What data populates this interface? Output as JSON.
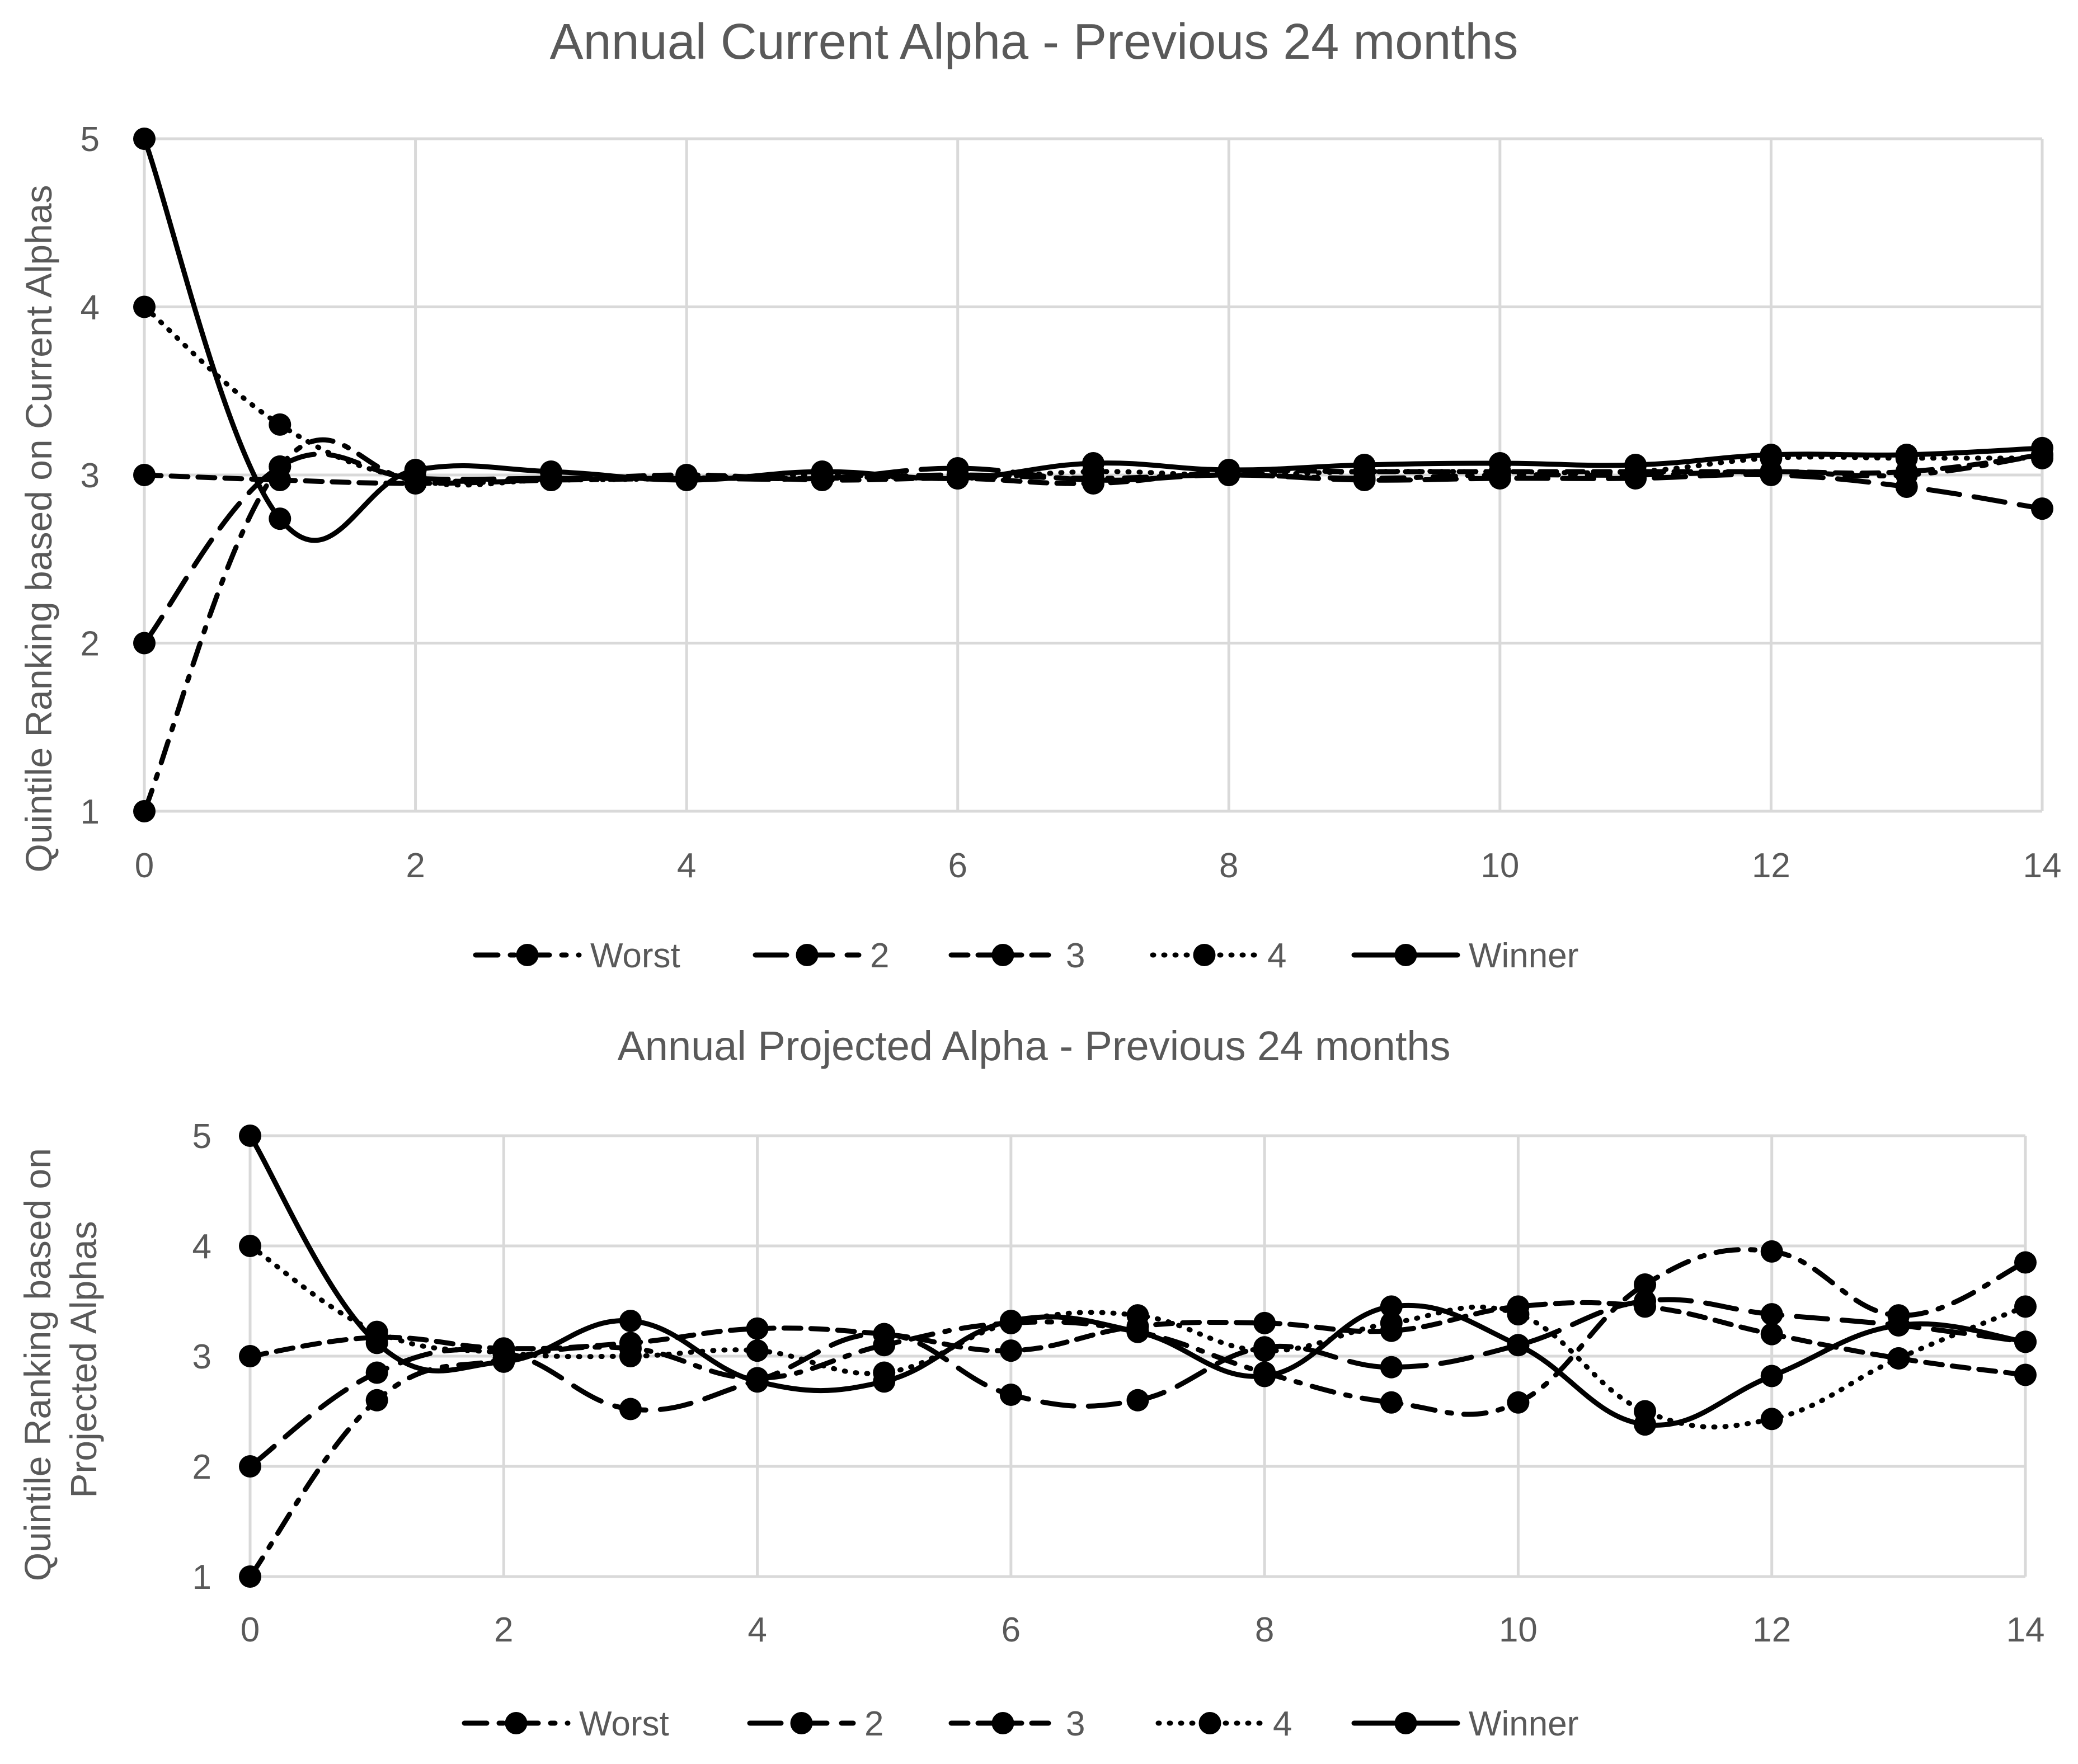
{
  "chart_data": [
    {
      "type": "line",
      "title": "Annual Current Alpha - Previous 24 months",
      "xlabel": "",
      "ylabel": "Quintile Ranking based on Current Alphas",
      "x": [
        0,
        1,
        2,
        3,
        4,
        5,
        6,
        7,
        8,
        9,
        10,
        11,
        12,
        13,
        14
      ],
      "xticks": [
        0,
        2,
        4,
        6,
        8,
        10,
        12,
        14
      ],
      "yticks": [
        1,
        2,
        3,
        4,
        5
      ],
      "xlim": [
        0,
        14
      ],
      "ylim": [
        1,
        5
      ],
      "grid": true,
      "legend_position": "bottom",
      "series": [
        {
          "name": "Worst",
          "style": "dashdot",
          "values": [
            1,
            3.05,
            2.97,
            2.97,
            2.98,
            2.98,
            3.0,
            2.98,
            3.0,
            2.98,
            3.0,
            3.0,
            3.02,
            3.0,
            3.12
          ]
        },
        {
          "name": "2",
          "style": "longdash",
          "values": [
            2,
            3.05,
            2.98,
            2.98,
            2.98,
            2.98,
            3.04,
            2.97,
            3.0,
            2.97,
            2.98,
            2.98,
            3.0,
            2.93,
            2.8
          ]
        },
        {
          "name": "3",
          "style": "dash",
          "values": [
            3,
            2.97,
            2.95,
            2.97,
            3.0,
            2.97,
            2.98,
            2.95,
            3.02,
            3.02,
            3.02,
            3.02,
            3.02,
            3.02,
            3.12
          ]
        },
        {
          "name": "4",
          "style": "dot",
          "values": [
            4,
            3.3,
            2.97,
            2.97,
            2.98,
            3.0,
            2.98,
            3.02,
            3.0,
            3.02,
            3.02,
            3.02,
            3.1,
            3.1,
            3.1
          ]
        },
        {
          "name": "Winner",
          "style": "solid",
          "values": [
            5,
            2.74,
            3.03,
            3.02,
            2.97,
            3.02,
            2.98,
            3.07,
            3.03,
            3.06,
            3.07,
            3.06,
            3.12,
            3.12,
            3.16
          ]
        }
      ]
    },
    {
      "type": "line",
      "title": "Annual Projected Alpha - Previous 24 months",
      "xlabel": "",
      "ylabel": "Quintile Ranking based on Projected Alphas",
      "ylabel_lines": [
        "Quintile Ranking based on",
        "Projected Alphas"
      ],
      "x": [
        0,
        1,
        2,
        3,
        4,
        5,
        6,
        7,
        8,
        9,
        10,
        11,
        12,
        13,
        14
      ],
      "xticks": [
        0,
        2,
        4,
        6,
        8,
        10,
        12,
        14
      ],
      "yticks": [
        1,
        2,
        3,
        4,
        5
      ],
      "xlim": [
        0,
        14
      ],
      "ylim": [
        1,
        5
      ],
      "grid": true,
      "legend_position": "bottom",
      "series": [
        {
          "name": "Worst",
          "style": "dashdot",
          "values": [
            1,
            2.6,
            2.97,
            3.07,
            2.8,
            3.1,
            3.3,
            3.22,
            2.85,
            2.58,
            2.58,
            3.65,
            3.95,
            3.37,
            3.85
          ]
        },
        {
          "name": "2",
          "style": "longdash",
          "values": [
            2,
            2.85,
            3.03,
            2.52,
            2.78,
            3.2,
            2.65,
            2.6,
            3.08,
            2.9,
            3.1,
            3.5,
            3.38,
            3.28,
            3.13
          ]
        },
        {
          "name": "3",
          "style": "dash",
          "values": [
            3,
            3.17,
            3.07,
            3.12,
            3.25,
            3.2,
            3.05,
            3.27,
            3.3,
            3.23,
            3.45,
            3.45,
            3.2,
            2.98,
            2.83
          ]
        },
        {
          "name": "4",
          "style": "dot",
          "values": [
            4,
            3.22,
            3.03,
            3.0,
            3.05,
            2.85,
            3.3,
            3.37,
            3.05,
            3.3,
            3.38,
            2.5,
            2.43,
            2.98,
            3.45
          ]
        },
        {
          "name": "Winner",
          "style": "solid",
          "values": [
            5,
            3.12,
            2.95,
            3.32,
            2.77,
            2.77,
            3.32,
            3.22,
            2.82,
            3.45,
            3.1,
            2.38,
            2.82,
            3.28,
            3.13
          ]
        }
      ]
    }
  ]
}
